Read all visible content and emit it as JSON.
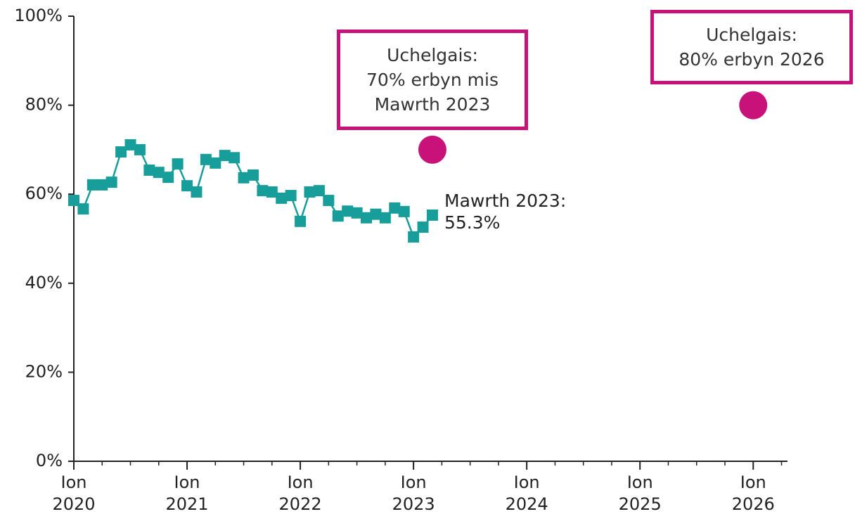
{
  "chart_data": {
    "type": "line",
    "x": [
      "2020-01",
      "2020-02",
      "2020-03",
      "2020-04",
      "2020-05",
      "2020-06",
      "2020-07",
      "2020-08",
      "2020-09",
      "2020-10",
      "2020-11",
      "2020-12",
      "2021-01",
      "2021-02",
      "2021-03",
      "2021-04",
      "2021-05",
      "2021-06",
      "2021-07",
      "2021-08",
      "2021-09",
      "2021-10",
      "2021-11",
      "2021-12",
      "2022-01",
      "2022-02",
      "2022-03",
      "2022-04",
      "2022-05",
      "2022-06",
      "2022-07",
      "2022-08",
      "2022-09",
      "2022-10",
      "2022-11",
      "2022-12",
      "2023-01",
      "2023-02",
      "2023-03"
    ],
    "series": [
      {
        "color": "#179e9a",
        "values": [
          58.6,
          56.7,
          62.1,
          62.1,
          62.7,
          69.5,
          71.1,
          70.0,
          65.4,
          64.9,
          63.8,
          66.8,
          61.9,
          60.5,
          67.8,
          67.0,
          68.7,
          68.2,
          63.7,
          64.3,
          60.8,
          60.5,
          59.1,
          59.7,
          53.9,
          60.5,
          60.8,
          58.6,
          55.1,
          56.2,
          55.8,
          54.7,
          55.5,
          54.7,
          56.9,
          56.1,
          50.4,
          52.6,
          55.3
        ]
      }
    ],
    "targets": {
      "color": "#c8127a",
      "x": [
        "2023-03",
        "2026-01"
      ],
      "values": [
        70,
        80
      ]
    },
    "annotations": [
      {
        "text": "Mawrth 2023:\n55.3%"
      },
      {
        "text": "Uchelgais:\n70% erbyn mis\nMawrth 2023"
      },
      {
        "text": "Uchelgais:\n80% erbyn 2026"
      }
    ],
    "xlim": [
      "2020-01",
      "2026-04"
    ],
    "xticks": [
      {
        "value": "2020-01",
        "label": "Ion\n2020"
      },
      {
        "value": "2021-01",
        "label": "Ion\n2021"
      },
      {
        "value": "2022-01",
        "label": "Ion\n2022"
      },
      {
        "value": "2023-01",
        "label": "Ion\n2023"
      },
      {
        "value": "2024-01",
        "label": "Ion\n2024"
      },
      {
        "value": "2025-01",
        "label": "Ion\n2025"
      },
      {
        "value": "2026-01",
        "label": "Ion\n2026"
      }
    ],
    "ylim": [
      0,
      100
    ],
    "yticks": [
      {
        "value": 0,
        "label": "0%"
      },
      {
        "value": 20,
        "label": "20%"
      },
      {
        "value": 40,
        "label": "40%"
      },
      {
        "value": 60,
        "label": "60%"
      },
      {
        "value": 80,
        "label": "80%"
      },
      {
        "value": 100,
        "label": "100%"
      }
    ],
    "grid": false
  }
}
